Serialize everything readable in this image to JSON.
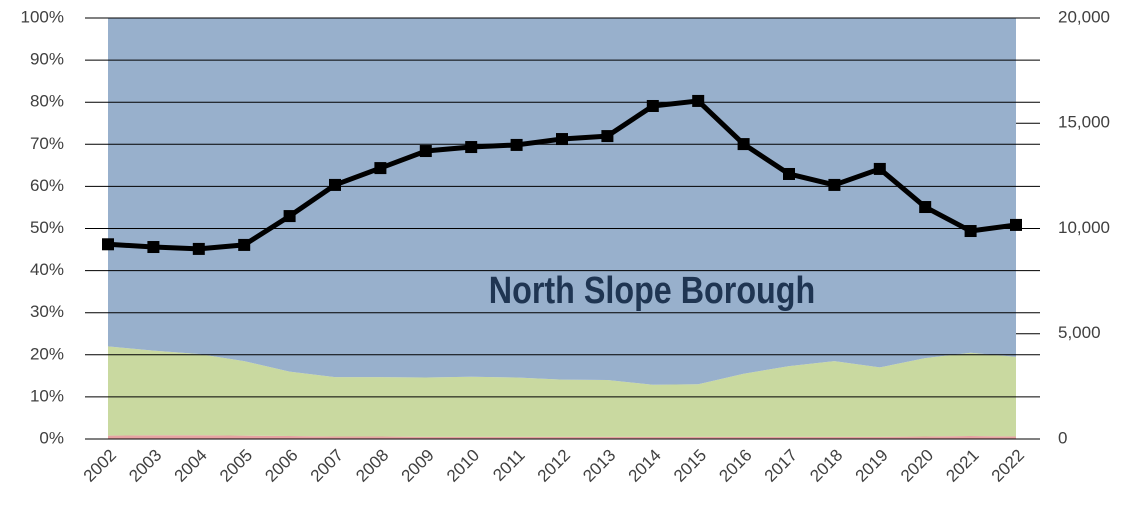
{
  "chart_data": {
    "type": "stacked-area-line",
    "annotation": "North Slope Borough",
    "categories": [
      "2002",
      "2003",
      "2004",
      "2005",
      "2006",
      "2007",
      "2008",
      "2009",
      "2010",
      "2011",
      "2012",
      "2013",
      "2014",
      "2015",
      "2016",
      "2017",
      "2018",
      "2019",
      "2020",
      "2021",
      "2022"
    ],
    "series": [
      {
        "color": "#e6a3a3",
        "values": [
          0.8,
          0.9,
          0.9,
          0.8,
          0.7,
          0.6,
          0.6,
          0.5,
          0.5,
          0.5,
          0.5,
          0.5,
          0.5,
          0.5,
          0.5,
          0.5,
          0.5,
          0.5,
          0.6,
          0.7,
          0.6
        ]
      },
      {
        "color": "#c9d9a0",
        "values": [
          21.2,
          20.1,
          19.3,
          17.7,
          15.3,
          14.1,
          14.1,
          14.1,
          14.3,
          14.1,
          13.6,
          13.5,
          12.4,
          12.5,
          15.0,
          16.8,
          18.0,
          16.5,
          18.6,
          19.8,
          18.9
        ]
      },
      {
        "color": "#98b0cc",
        "values": [
          78,
          79,
          79.8,
          81.5,
          84,
          85.3,
          85.3,
          85.4,
          85.2,
          85.4,
          85.9,
          86,
          87.1,
          87,
          84.5,
          82.7,
          81.5,
          83,
          80.8,
          79.5,
          80.5
        ]
      },
      {
        "color": "#000000",
        "axis": "y2",
        "values": [
          9250,
          9120,
          9030,
          9220,
          10590,
          12070,
          12870,
          13680,
          13870,
          13970,
          14250,
          14390,
          15820,
          16060,
          14010,
          12590,
          12070,
          12830,
          11020,
          9880,
          10170
        ]
      }
    ],
    "ylim": [
      0,
      100
    ],
    "yticks": [
      {
        "value": 0,
        "label": "0%"
      },
      {
        "value": 10,
        "label": "10%"
      },
      {
        "value": 20,
        "label": "20%"
      },
      {
        "value": 30,
        "label": "30%"
      },
      {
        "value": 40,
        "label": "40%"
      },
      {
        "value": 50,
        "label": "50%"
      },
      {
        "value": 60,
        "label": "60%"
      },
      {
        "value": 70,
        "label": "70%"
      },
      {
        "value": 80,
        "label": "80%"
      },
      {
        "value": 90,
        "label": "90%"
      },
      {
        "value": 100,
        "label": "100%"
      }
    ],
    "y2lim": [
      0,
      20000
    ],
    "y2ticks": [
      0,
      {
        "value": 5000,
        "label": "5,000"
      },
      {
        "value": 10000,
        "label": "10,000"
      },
      {
        "value": 15000,
        "label": "15,000"
      },
      {
        "value": 20000,
        "label": "20,000"
      }
    ],
    "grid": true
  }
}
